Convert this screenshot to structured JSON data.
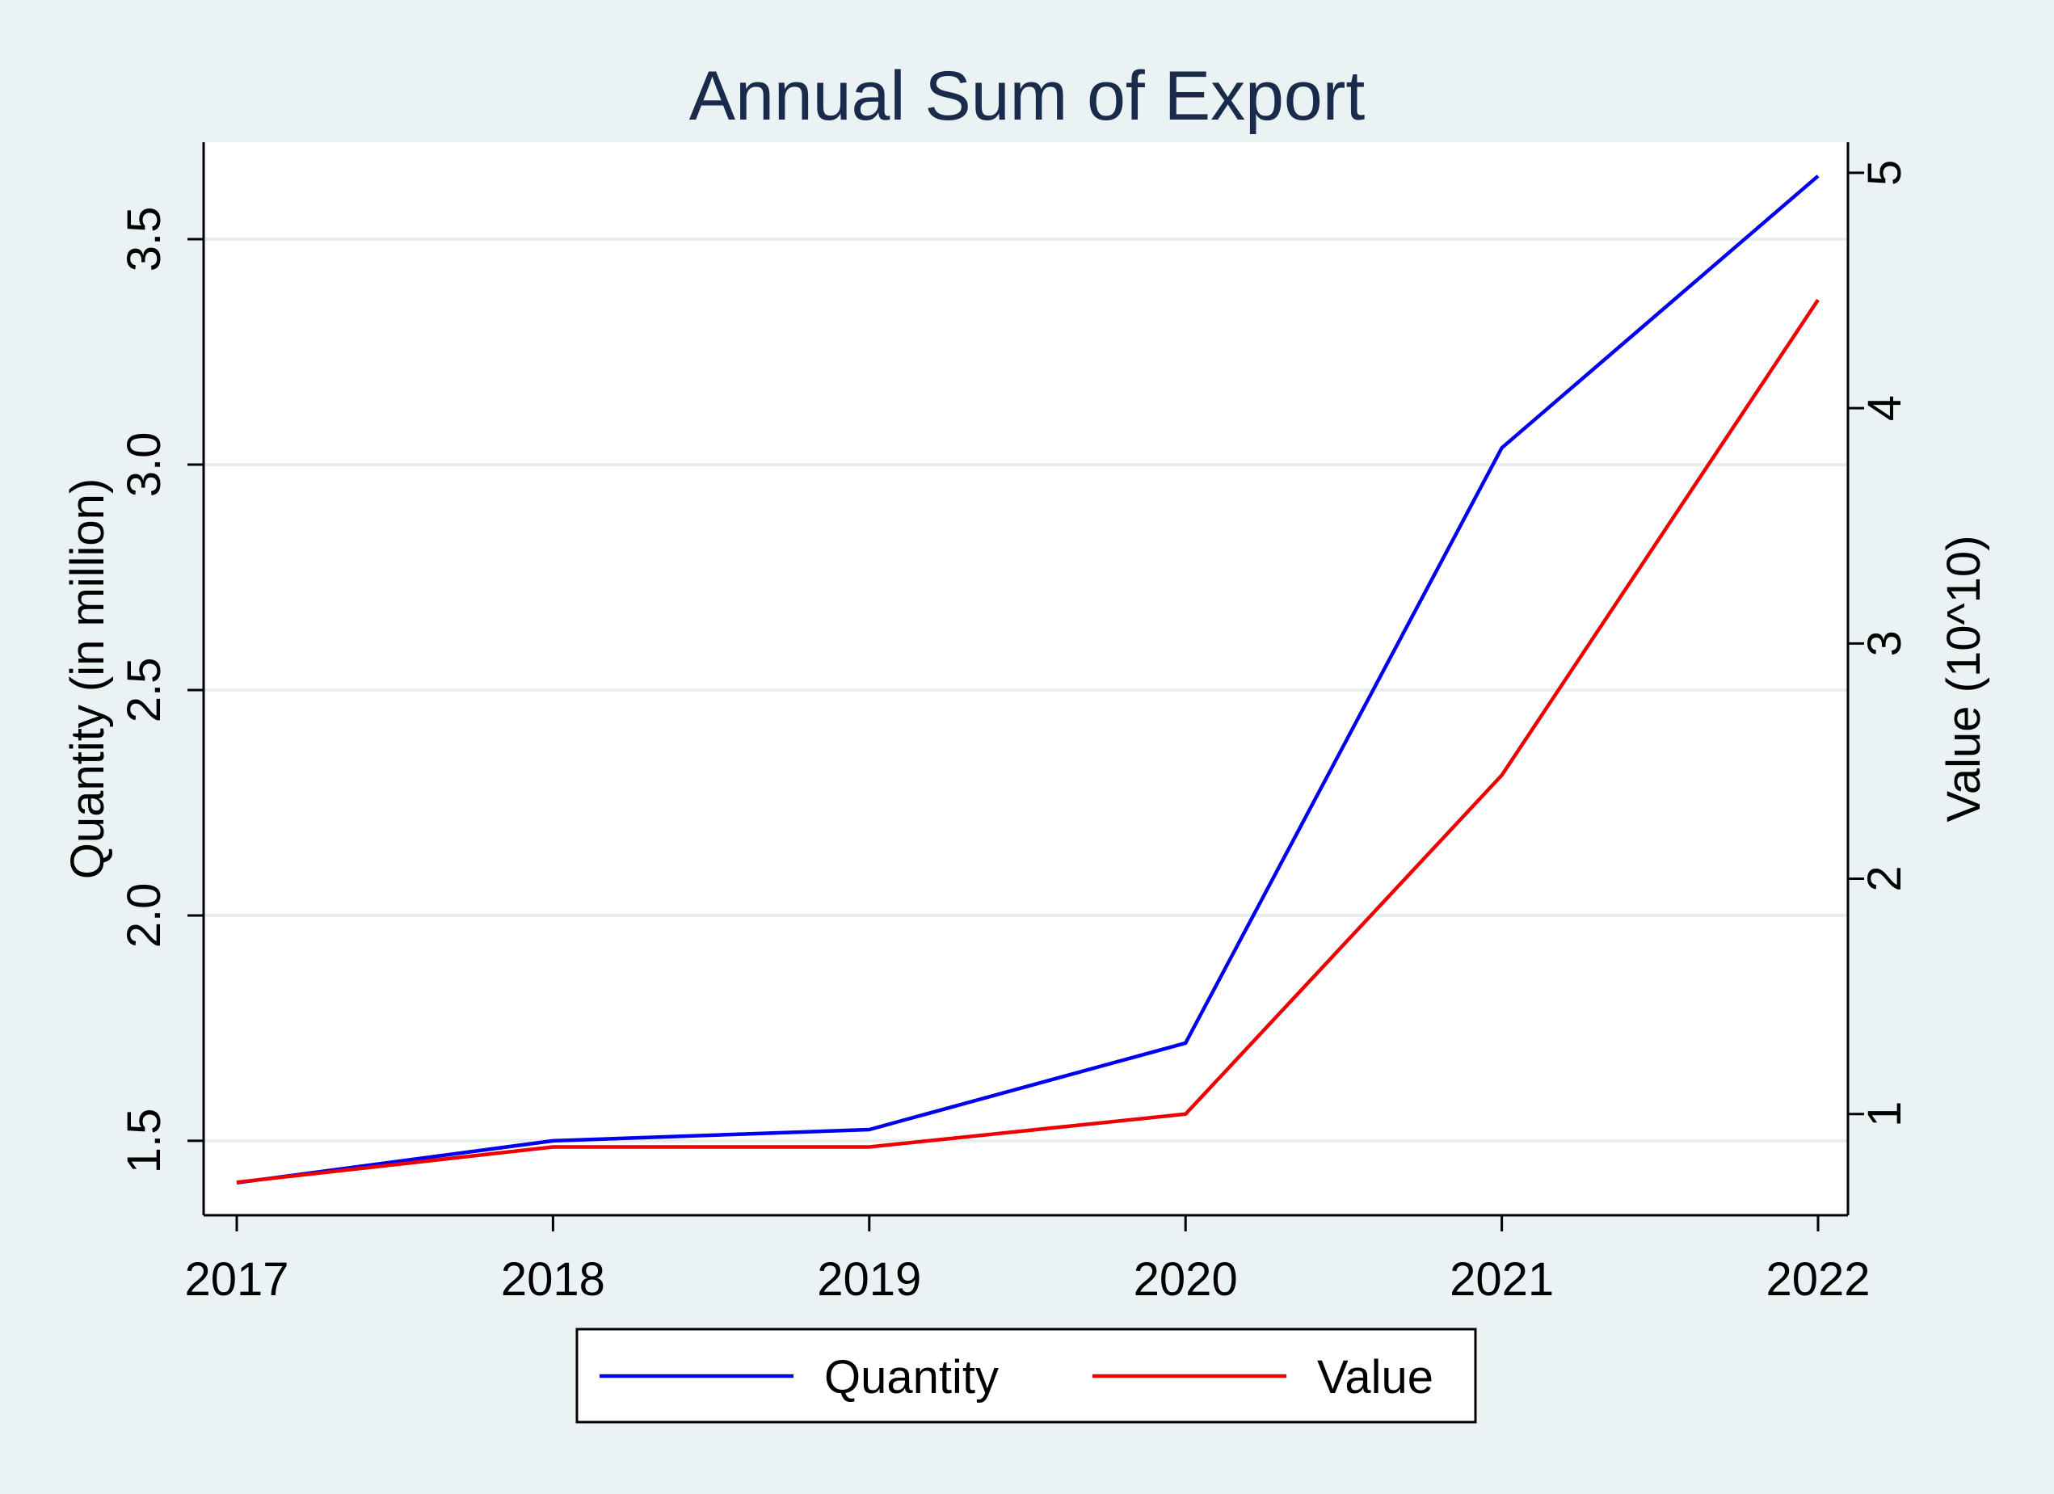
{
  "chart_data": {
    "type": "line",
    "title": "Annual Sum of Export",
    "x": [
      "2017",
      "2018",
      "2019",
      "2020",
      "2021",
      "2022"
    ],
    "x_tick_labels": [
      "2017",
      "2018",
      "2019",
      "2020",
      "2021",
      "2022"
    ],
    "y_left": {
      "label": "Quantity (in million)",
      "ticks": [
        "1.5",
        "2.0",
        "2.5",
        "3.0",
        "3.5"
      ],
      "tick_values": [
        1.5,
        2.0,
        2.5,
        3.0,
        3.5
      ],
      "range": [
        1.335,
        3.715
      ]
    },
    "y_right": {
      "label": "Value (10^10)",
      "ticks": [
        "1",
        "2",
        "3",
        "4",
        "5"
      ],
      "tick_values": [
        1,
        2,
        3,
        4,
        5
      ],
      "range": [
        0.57,
        5.13
      ]
    },
    "series": [
      {
        "name": "Quantity",
        "axis": "left",
        "color": "#0000ee",
        "values": [
          1.407,
          1.5,
          1.525,
          1.717,
          3.037,
          3.64
        ]
      },
      {
        "name": "Value",
        "axis": "right",
        "color": "#ee0000",
        "values": [
          0.71,
          0.86,
          0.86,
          1.0,
          2.44,
          4.46
        ]
      }
    ],
    "grid": true,
    "legend": "bottom-center",
    "colors": {
      "background": "#eaf2f3",
      "plot_background": "#ffffff",
      "gridline": "#e6eeee",
      "title": "#1a2a4a"
    }
  }
}
